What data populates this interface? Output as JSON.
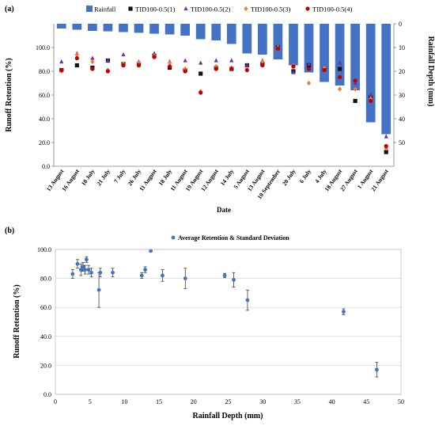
{
  "chart_data": [
    {
      "panel_label": "(a)",
      "type": "bar+scatter",
      "xlabel": "Date",
      "ylabel": "Runoff Retention (%)",
      "y2label": "Rainfall Depth (mm)",
      "ylim": [
        0,
        120
      ],
      "yticks": [
        "0.0",
        "20.0",
        "40.0",
        "60.0",
        "80.0",
        "100.0"
      ],
      "y2lim": [
        0,
        60
      ],
      "y2_reversed": true,
      "y2ticks": [
        "0",
        "10",
        "20",
        "30",
        "40",
        "50"
      ],
      "legend_position": "top",
      "categories": [
        "13 August",
        "16 August",
        "18 July",
        "21 July",
        "7 July",
        "26 July",
        "11 August",
        "18 July",
        "11 August",
        "19 August",
        "12 August",
        "14 July",
        "5 August",
        "13 August",
        "10 September",
        "20 July",
        "6 July",
        "4 July",
        "18 August",
        "27 August",
        "1 August",
        "21 August"
      ],
      "series": [
        {
          "name": "Rainfall",
          "kind": "bar",
          "axis": "y2",
          "color": "#4472c4",
          "values": [
            2.0,
            2.5,
            3.0,
            3.2,
            3.5,
            3.8,
            4.2,
            4.5,
            5.0,
            6.5,
            7.0,
            8.5,
            12.5,
            13.0,
            15.0,
            17.5,
            20.5,
            24.5,
            26.0,
            28.0,
            41.5,
            46.5
          ]
        },
        {
          "name": "TID100-0.5(1)",
          "kind": "scatter",
          "marker": "square",
          "color": "#111111",
          "values": [
            81,
            85,
            83,
            89,
            86,
            86,
            93,
            83,
            81,
            78,
            83,
            82,
            85,
            86,
            100,
            80,
            85,
            82,
            82,
            55,
            58,
            12
          ]
        },
        {
          "name": "TID100-0.5(2)",
          "kind": "scatter",
          "marker": "triangle",
          "color": "#7030a0",
          "values": [
            88,
            95,
            91,
            89,
            94,
            88,
            95,
            88,
            89,
            87,
            89,
            89,
            85,
            89,
            100,
            79,
            86,
            84,
            87,
            70,
            60,
            25
          ]
        },
        {
          "name": "TID100-0.5(3)",
          "kind": "scatter",
          "marker": "diamond",
          "color": "#ed7d31",
          "values": [
            80,
            94,
            88,
            81,
            86,
            87,
            93,
            87,
            82,
            63,
            84,
            83,
            81,
            88,
            100,
            85,
            70,
            83,
            65,
            65,
            57,
            15
          ]
        },
        {
          "name": "TID100-0.5(4)",
          "kind": "scatter",
          "marker": "circle",
          "color": "#c00000",
          "values": [
            81,
            91,
            82,
            80,
            85,
            85,
            92,
            84,
            80,
            62,
            82,
            82,
            81,
            85,
            99,
            84,
            82,
            81,
            75,
            72,
            55,
            17
          ]
        }
      ]
    },
    {
      "panel_label": "(b)",
      "type": "scatter",
      "xlabel": "Rainfall Depth (mm)",
      "ylabel": "Runoff Retention (%)",
      "xlim": [
        0,
        50
      ],
      "xticks": [
        "0",
        "5",
        "10",
        "15",
        "20",
        "25",
        "30",
        "35",
        "40",
        "45",
        "50"
      ],
      "ylim": [
        0,
        100
      ],
      "yticks": [
        "0.0",
        "20.0",
        "40.0",
        "60.0",
        "80.0",
        "100.0"
      ],
      "legend_position": "top",
      "series": [
        {
          "name": "Average Retention & Standard Deviation",
          "color": "#4472c4",
          "x": [
            2.5,
            3.2,
            3.7,
            4.0,
            4.3,
            4.5,
            4.8,
            5.2,
            6.3,
            6.5,
            8.3,
            12.5,
            13.0,
            13.8,
            15.5,
            18.8,
            24.5,
            25.8,
            27.8,
            41.7,
            46.5
          ],
          "y": [
            83,
            90,
            86,
            88,
            86,
            93,
            86,
            84,
            72,
            84,
            84,
            82,
            86,
            99,
            82,
            80,
            82,
            79,
            65,
            57,
            17
          ],
          "err": [
            3,
            3,
            4,
            3,
            3,
            2,
            3,
            3,
            12,
            3,
            3,
            2,
            2,
            0.5,
            4,
            7,
            1.5,
            5,
            7,
            2,
            5
          ]
        }
      ]
    }
  ]
}
